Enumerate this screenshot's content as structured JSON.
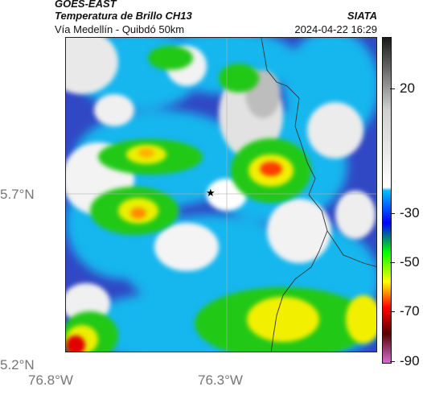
{
  "header": {
    "satellite": "GOES-EAST",
    "product": "Temperatura de Brillo CH13",
    "region": "Vía Medellín - Quibdó 50km",
    "organization": "SIATA",
    "timestamp": "2024-04-22 16:29"
  },
  "axes": {
    "x_ticks": [
      "76.8°W",
      "76.3°W"
    ],
    "y_ticks": [
      "5.7°N",
      "5.2°N"
    ]
  },
  "colorbar": {
    "ticks": [
      "20",
      "-30",
      "-50",
      "-70",
      "-90"
    ],
    "units": "°C",
    "colors": [
      "#1a1a1a",
      "#cfcfcf",
      "#ffffff",
      "#00bfff",
      "#0000ff",
      "#00ff00",
      "#ffff00",
      "#ff0000",
      "#5a0000",
      "#d070d0"
    ]
  },
  "map": {
    "station_symbol": "★",
    "station_icon": "star-icon"
  }
}
